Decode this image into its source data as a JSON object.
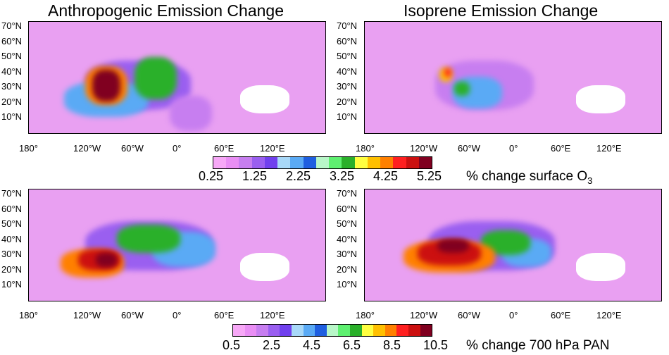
{
  "titles": {
    "left": "Anthropogenic Emission Change",
    "right": "Isoprene Emission Change"
  },
  "lat_labels": [
    "70°N",
    "60°N",
    "50°N",
    "40°N",
    "30°N",
    "20°N",
    "10°N"
  ],
  "lon_labels": [
    "180°",
    "120°W",
    "60°W",
    "0°",
    "60°E",
    "120°E"
  ],
  "colorbar_colors": [
    "#f7a8f7",
    "#e98ef4",
    "#c77ef0",
    "#9a5ff0",
    "#7040ee",
    "#a8d8f8",
    "#5aaaf5",
    "#1f5fe0",
    "#b8f7c8",
    "#5ef070",
    "#2ab02a",
    "#ffff40",
    "#ffc000",
    "#ff8000",
    "#ff2020",
    "#cc1010",
    "#800020"
  ],
  "colorbar_o3": {
    "ticks": [
      "0.25",
      "1.25",
      "2.25",
      "3.25",
      "4.25",
      "5.25"
    ],
    "label": "% change surface O",
    "label_sub": "3"
  },
  "colorbar_pan": {
    "ticks": [
      "0.5",
      "2.5",
      "4.5",
      "6.5",
      "8.5",
      "10.5"
    ],
    "label": "% change 700 hPa PAN"
  },
  "panels": [
    {
      "name": "anthropogenic-surface-o3",
      "base": "#e9a0f2",
      "blobs": [
        [
          "#9a5ff0",
          155,
          90,
          150,
          70
        ],
        [
          "#5aaaf5",
          110,
          110,
          120,
          50
        ],
        [
          "#2ab02a",
          180,
          80,
          60,
          60
        ],
        [
          "#ff8000",
          110,
          90,
          60,
          55
        ],
        [
          "#800020",
          110,
          90,
          40,
          45
        ],
        [
          "#c77ef0",
          230,
          130,
          60,
          50
        ]
      ]
    },
    {
      "name": "isoprene-surface-o3",
      "base": "#e9a0f2",
      "blobs": [
        [
          "#c77ef0",
          170,
          90,
          140,
          70
        ],
        [
          "#5aaaf5",
          160,
          100,
          70,
          45
        ],
        [
          "#ffc000",
          115,
          75,
          18,
          20
        ],
        [
          "#ff2020",
          118,
          72,
          10,
          12
        ],
        [
          "#2ab02a",
          138,
          95,
          22,
          20
        ]
      ]
    },
    {
      "name": "anthropogenic-700hpa-pan",
      "base": "#e9a0f2",
      "blobs": [
        [
          "#9a5ff0",
          170,
          80,
          180,
          70
        ],
        [
          "#5aaaf5",
          220,
          85,
          90,
          50
        ],
        [
          "#2ab02a",
          170,
          70,
          90,
          40
        ],
        [
          "#ff8000",
          90,
          105,
          90,
          40
        ],
        [
          "#cc1010",
          100,
          100,
          60,
          30
        ],
        [
          "#800020",
          110,
          100,
          30,
          20
        ]
      ]
    },
    {
      "name": "isoprene-700hpa-pan",
      "base": "#e9a0f2",
      "blobs": [
        [
          "#9a5ff0",
          180,
          80,
          180,
          70
        ],
        [
          "#5aaaf5",
          230,
          90,
          70,
          40
        ],
        [
          "#2ab02a",
          200,
          75,
          70,
          35
        ],
        [
          "#ff8000",
          120,
          95,
          130,
          45
        ],
        [
          "#cc1010",
          120,
          90,
          90,
          35
        ],
        [
          "#800020",
          125,
          80,
          45,
          20
        ]
      ]
    }
  ]
}
